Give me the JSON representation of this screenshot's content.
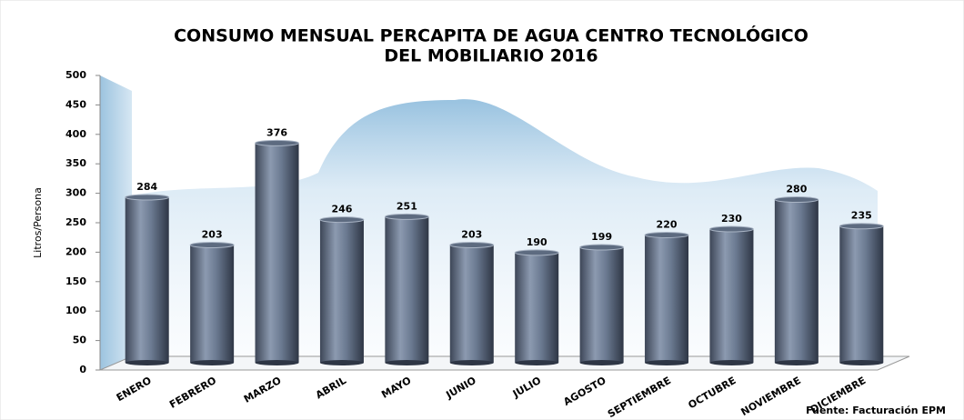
{
  "chart_data": {
    "type": "bar",
    "title": [
      "CONSUMO MENSUAL PERCAPITA DE AGUA CENTRO TECNOLÓGICO",
      "DEL MOBILIARIO 2016"
    ],
    "y_label": "Litros/Persona",
    "categories": [
      "ENERO",
      "FEBRERO",
      "MARZO",
      "ABRIL",
      "MAYO",
      "JUNIO",
      "JULIO",
      "AGOSTO",
      "SEPTIEMBRE",
      "OCTUBRE",
      "NOVIEMBRE",
      "DICIEMBRE"
    ],
    "values": [
      284,
      203,
      376,
      246,
      251,
      203,
      190,
      199,
      220,
      230,
      280,
      235
    ],
    "color": "#5d6b80",
    "ylim": [
      0,
      500
    ],
    "yticks": [
      0,
      50,
      100,
      150,
      200,
      250,
      300,
      350,
      400,
      450,
      500
    ],
    "source": "Fuente: Facturación EPM"
  }
}
